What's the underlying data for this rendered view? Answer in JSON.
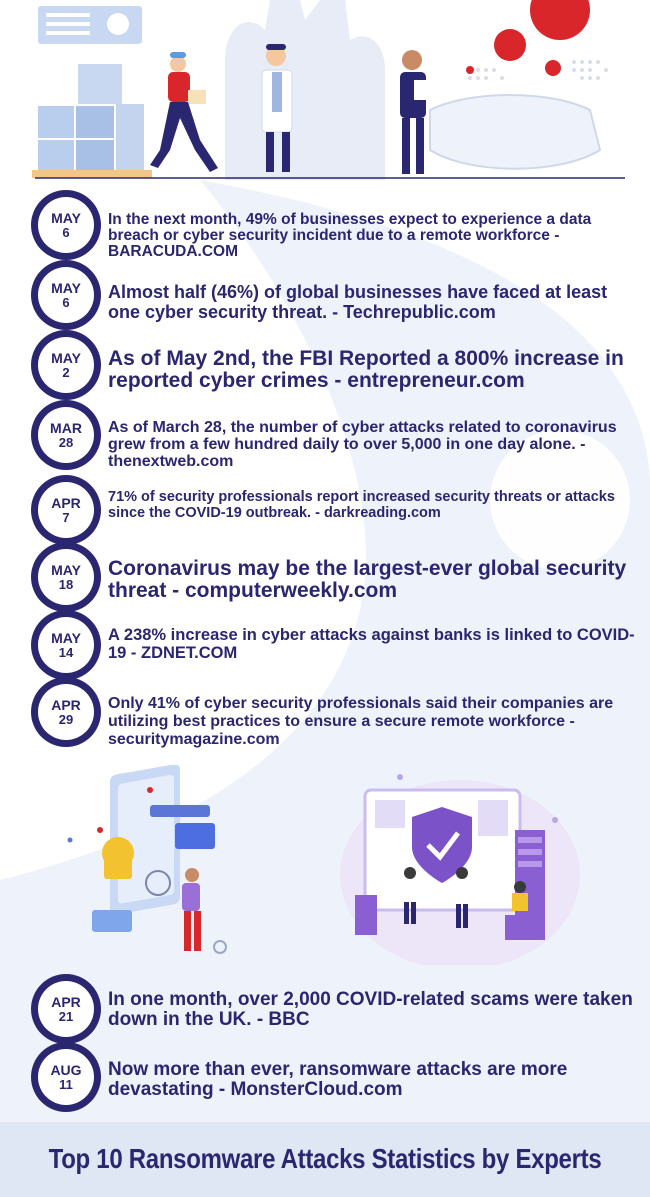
{
  "entries": [
    {
      "month": "MAY",
      "day": "6",
      "text": "In the next month, 49% of businesses expect to experience a data breach or cyber security incident due to a remote workforce - BARACUDA.COM"
    },
    {
      "month": "MAY",
      "day": "6",
      "text": "Almost half (46%) of global businesses have faced at least one cyber security threat. - Techrepublic.com"
    },
    {
      "month": "MAY",
      "day": "2",
      "text": "As of May 2nd, the FBI Reported a 800% increase in reported cyber crimes - entrepreneur.com"
    },
    {
      "month": "MAR",
      "day": "28",
      "text": "As of March 28, the number of cyber attacks related to coronavirus grew from a few hundred daily to over 5,000 in one day alone. - thenextweb.com"
    },
    {
      "month": "APR",
      "day": "7",
      "text": "71% of security professionals report increased security threats or attacks since the COVID-19 outbreak. - darkreading.com"
    },
    {
      "month": "MAY",
      "day": "18",
      "text": "Coronavirus may be the largest-ever global security threat - computerweekly.com"
    },
    {
      "month": "MAY",
      "day": "14",
      "text": "A 238% increase in cyber attacks against banks is linked to COVID-19 - ZDNET.COM"
    },
    {
      "month": "APR",
      "day": "29",
      "text": "Only 41% of cyber security professionals said their companies are utilizing best practices to ensure a secure remote workforce - securitymagazine.com"
    },
    {
      "month": "APR",
      "day": "21",
      "text": "In one month, over 2,000 COVID-related scams were taken down in the UK. - BBC"
    },
    {
      "month": "AUG",
      "day": "11",
      "text": "Now more than ever, ransomware attacks are more devastating - MonsterCloud.com"
    }
  ],
  "footer": {
    "title": "Top 10 Ransomware Attacks Statistics by Experts"
  },
  "colors": {
    "navy": "#2b2670",
    "light_blue": "#dfe6f4",
    "virus_red": "#d8262b"
  }
}
